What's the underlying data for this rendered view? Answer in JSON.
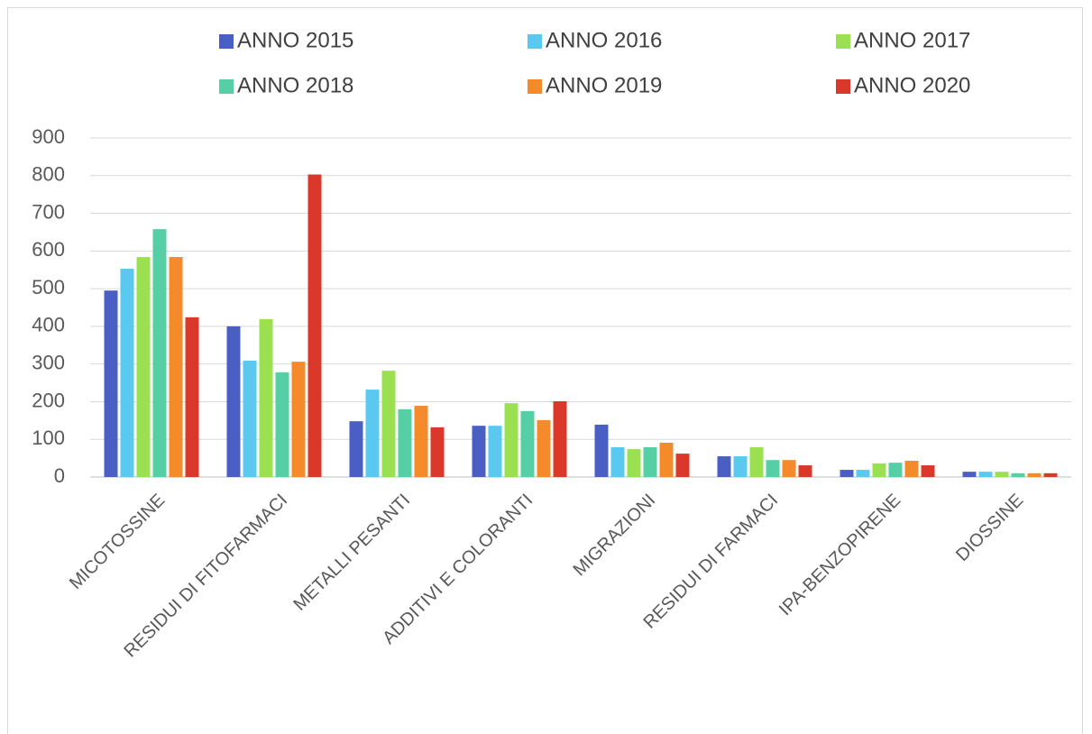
{
  "chart_data": {
    "type": "bar",
    "categories": [
      "MICOTOSSINE",
      "RESIDUI DI FITOFARMACI",
      "METALLI PESANTI",
      "ADDITIVI E COLORANTI",
      "MIGRAZIONI",
      "RESIDUI DI FARMACI",
      "IPA-BENZOPIRENE",
      "DIOSSINE"
    ],
    "series": [
      {
        "name": "ANNO 2015",
        "color": "#4a5fc4",
        "values": [
          495,
          400,
          148,
          136,
          139,
          55,
          19,
          14
        ]
      },
      {
        "name": "ANNO 2016",
        "color": "#5bc8f0",
        "values": [
          553,
          309,
          232,
          136,
          79,
          55,
          19,
          14
        ]
      },
      {
        "name": "ANNO 2017",
        "color": "#9be051",
        "values": [
          584,
          419,
          282,
          196,
          74,
          79,
          36,
          14
        ]
      },
      {
        "name": "ANNO 2018",
        "color": "#56cfa7",
        "values": [
          658,
          278,
          180,
          175,
          79,
          45,
          38,
          10
        ]
      },
      {
        "name": "ANNO 2019",
        "color": "#f58a2a",
        "values": [
          584,
          306,
          189,
          151,
          91,
          45,
          43,
          10
        ]
      },
      {
        "name": "ANNO 2020",
        "color": "#d9382a",
        "values": [
          424,
          803,
          132,
          201,
          62,
          31,
          31,
          10
        ]
      }
    ],
    "ylim": [
      0,
      900
    ],
    "yticks": [
      0,
      100,
      200,
      300,
      400,
      500,
      600,
      700,
      800,
      900
    ],
    "grid": true,
    "legend": "top"
  }
}
